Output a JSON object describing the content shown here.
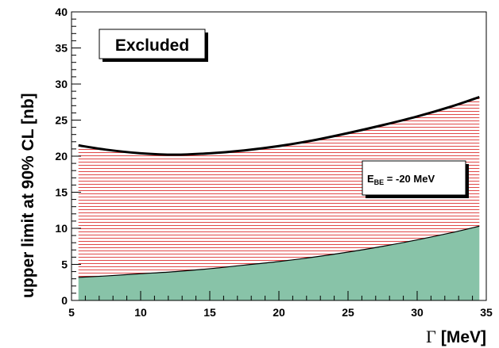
{
  "chart_data": {
    "type": "area",
    "xlabel_symbol": "Γ",
    "xlabel_unit": "[MeV]",
    "ylabel": "upper limit at 90% CL [nb]",
    "xlim": [
      5,
      35
    ],
    "ylim": [
      0,
      40
    ],
    "x_ticks": [
      5,
      10,
      15,
      20,
      25,
      30,
      35
    ],
    "y_ticks": [
      0,
      5,
      10,
      15,
      20,
      25,
      30,
      35,
      40
    ],
    "x": [
      5.5,
      7.5,
      10,
      12.5,
      15,
      17.5,
      20,
      22.5,
      25,
      27.5,
      30,
      32.5,
      34.5
    ],
    "series": [
      {
        "role": "upper",
        "values": [
          21.5,
          20.9,
          20.4,
          20.2,
          20.4,
          20.8,
          21.4,
          22.2,
          23.2,
          24.3,
          25.5,
          26.9,
          28.2
        ],
        "fill": "hatched",
        "hatch_color": "#e04848"
      },
      {
        "role": "lower",
        "values": [
          3.2,
          3.4,
          3.7,
          4.0,
          4.4,
          4.9,
          5.4,
          6.0,
          6.7,
          7.5,
          8.4,
          9.4,
          10.3
        ],
        "fill": "solid",
        "fill_color": "#88c3a8"
      }
    ],
    "annotations": [
      {
        "id": "excluded",
        "text": "Excluded"
      },
      {
        "id": "ebe",
        "main": "E",
        "sub": "BE",
        "rest": " = -20 MeV"
      }
    ],
    "grid": false,
    "legend": "none"
  }
}
